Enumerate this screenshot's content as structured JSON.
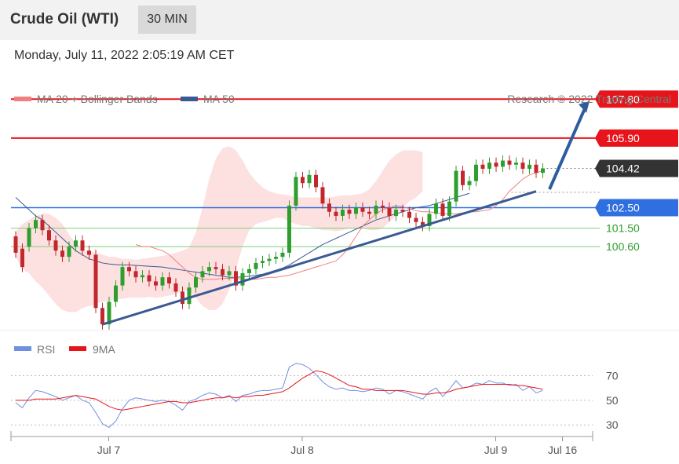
{
  "header": {
    "instrument": "Crude Oil (WTI)",
    "timeframe": "30 MIN",
    "datetime": "Monday, July 11, 2022 2:05:19 AM CET"
  },
  "legend": {
    "ma20": "MA 20 + Bollinger Bands",
    "ma50": "MA 50",
    "credit": "Research © 2022 Trading Central",
    "rsi": "RSI",
    "rsi_ma": "9MA"
  },
  "colors": {
    "resistance": "#e8141b",
    "support": "#2f6fe0",
    "pivot": "#2f6fe0",
    "minor_support": "#7ccf7c",
    "current": "#333333",
    "ma20": "#f08080",
    "ma50": "#3a5a94",
    "bollinger": "#fde0e0",
    "trendline": "#3a5a94",
    "candle_up": "#2e9e2e",
    "candle_down": "#c1272d",
    "rsi": "#6f8fe0",
    "rsi_ma": "#e8141b"
  },
  "chart_data": {
    "type": "candlestick",
    "price_axis": {
      "ylim": [
        96.5,
        109.0
      ]
    },
    "levels": [
      {
        "price": 107.8,
        "label": "107.80",
        "kind": "resistance",
        "tag_color": "#e8141b"
      },
      {
        "price": 105.9,
        "label": "105.90",
        "kind": "resistance",
        "tag_color": "#e8141b"
      },
      {
        "price": 104.42,
        "label": "104.42",
        "kind": "current",
        "tag_color": "#333333"
      },
      {
        "price": 102.5,
        "label": "102.50",
        "kind": "pivot",
        "tag_color": "#2f6fe0"
      },
      {
        "price": 101.5,
        "label": "101.50",
        "kind": "support",
        "tag_color": "#2e9e2e"
      },
      {
        "price": 100.6,
        "label": "100.60",
        "kind": "support",
        "tag_color": "#2e9e2e"
      }
    ],
    "x_ticks": [
      {
        "label": "Jul 7",
        "idx": 13
      },
      {
        "label": "Jul 8",
        "idx": 42
      },
      {
        "label": "Jul 9",
        "idx": 71
      },
      {
        "label": "Jul 16",
        "idx": 81
      }
    ],
    "candles": [
      [
        101.1,
        100.3
      ],
      [
        100.5,
        99.6
      ],
      [
        100.6,
        101.5
      ],
      [
        101.5,
        101.9
      ],
      [
        101.9,
        101.4
      ],
      [
        101.4,
        100.9
      ],
      [
        100.9,
        100.4
      ],
      [
        100.4,
        100.1
      ],
      [
        100.1,
        100.6
      ],
      [
        100.6,
        100.9
      ],
      [
        100.9,
        100.4
      ],
      [
        100.4,
        100.2
      ],
      [
        100.2,
        97.6
      ],
      [
        97.6,
        96.8
      ],
      [
        96.8,
        97.9
      ],
      [
        97.9,
        98.7
      ],
      [
        98.7,
        99.6
      ],
      [
        99.6,
        99.4
      ],
      [
        99.4,
        99.1
      ],
      [
        99.1,
        99.2
      ],
      [
        99.2,
        98.9
      ],
      [
        98.9,
        98.7
      ],
      [
        98.7,
        99.1
      ],
      [
        99.1,
        98.8
      ],
      [
        98.8,
        98.4
      ],
      [
        98.4,
        97.8
      ],
      [
        97.8,
        98.6
      ],
      [
        98.6,
        99.1
      ],
      [
        99.1,
        99.4
      ],
      [
        99.4,
        99.6
      ],
      [
        99.6,
        99.5
      ],
      [
        99.5,
        99.2
      ],
      [
        99.2,
        99.4
      ],
      [
        99.4,
        98.7
      ],
      [
        98.7,
        99.3
      ],
      [
        99.3,
        99.5
      ],
      [
        99.5,
        99.8
      ],
      [
        99.8,
        99.9
      ],
      [
        99.9,
        100.0
      ],
      [
        100.0,
        100.1
      ],
      [
        100.1,
        100.3
      ],
      [
        100.3,
        102.6
      ],
      [
        102.6,
        104.0
      ],
      [
        104.0,
        103.7
      ],
      [
        103.7,
        104.1
      ],
      [
        104.1,
        103.5
      ],
      [
        103.5,
        102.7
      ],
      [
        102.7,
        102.3
      ],
      [
        102.3,
        102.1
      ],
      [
        102.1,
        102.4
      ],
      [
        102.4,
        102.2
      ],
      [
        102.2,
        102.5
      ],
      [
        102.5,
        102.3
      ],
      [
        102.3,
        102.2
      ],
      [
        102.2,
        102.6
      ],
      [
        102.6,
        102.5
      ],
      [
        102.5,
        102.1
      ],
      [
        102.1,
        102.4
      ],
      [
        102.4,
        102.3
      ],
      [
        102.3,
        102.0
      ],
      [
        102.0,
        101.8
      ],
      [
        101.8,
        101.6
      ],
      [
        101.6,
        102.2
      ],
      [
        102.2,
        102.7
      ],
      [
        102.7,
        102.1
      ],
      [
        102.1,
        102.8
      ],
      [
        102.8,
        104.3
      ],
      [
        104.3,
        103.6
      ],
      [
        103.6,
        103.8
      ],
      [
        103.8,
        104.6
      ],
      [
        104.6,
        104.4
      ],
      [
        104.4,
        104.7
      ],
      [
        104.7,
        104.5
      ],
      [
        104.5,
        104.8
      ],
      [
        104.8,
        104.6
      ],
      [
        104.6,
        104.7
      ],
      [
        104.7,
        104.4
      ],
      [
        104.4,
        104.6
      ],
      [
        104.6,
        104.2
      ],
      [
        104.2,
        104.42
      ]
    ],
    "ma50": [
      103.0,
      102.7,
      102.4,
      102.1,
      101.9,
      101.6,
      101.3,
      101.0,
      100.7,
      100.4,
      100.2,
      100.0,
      99.9,
      99.8,
      99.75,
      99.72,
      99.7,
      99.7,
      99.68,
      99.66,
      99.64,
      99.62,
      99.6,
      99.55,
      99.5,
      99.45,
      99.4,
      99.35,
      99.3,
      99.25,
      99.2,
      99.15,
      99.1,
      99.1,
      99.12,
      99.15,
      99.2,
      99.25,
      99.35,
      99.45,
      99.55,
      99.7,
      99.9,
      100.1,
      100.3,
      100.5,
      100.7,
      100.85,
      101.0,
      101.15,
      101.3,
      101.45,
      101.6,
      101.75,
      101.9,
      102.0,
      102.1,
      102.2,
      102.3,
      102.4,
      102.5,
      102.55,
      102.6,
      102.7,
      102.8,
      102.9,
      103.0,
      103.1,
      103.2
    ],
    "ma20": [
      100.7,
      100.6,
      100.6,
      100.5,
      100.4,
      100.2,
      99.9,
      99.6,
      99.3,
      99.1,
      99.0,
      99.0,
      99.0,
      99.05,
      99.05,
      99.05,
      99.0,
      99.0,
      99.0,
      99.05,
      99.1,
      99.1,
      99.15,
      99.2,
      99.3,
      99.4,
      99.5,
      99.6,
      99.7,
      99.8,
      99.9,
      100.2,
      100.6,
      101.1,
      101.6,
      101.9,
      102.2,
      102.4,
      102.5,
      102.6,
      102.55,
      102.45,
      102.35,
      102.3,
      102.3,
      102.25,
      102.2,
      102.2,
      102.2,
      102.25,
      102.3,
      102.3,
      102.35,
      102.4,
      102.6,
      102.9,
      103.3,
      103.6,
      103.9,
      104.1,
      104.2,
      104.3
    ],
    "boll_upper": [
      101.3,
      101.7,
      101.9,
      102.1,
      102.2,
      102.2,
      102.0,
      101.7,
      101.2,
      100.7,
      100.4,
      100.4,
      100.3,
      100.2,
      100.1,
      100.1,
      100.0,
      100.0,
      99.95,
      100.0,
      100.05,
      100.1,
      100.15,
      100.2,
      100.3,
      100.4,
      100.55,
      101.3,
      102.5,
      103.9,
      104.9,
      105.4,
      105.5,
      105.3,
      104.8,
      104.2,
      103.8,
      103.5,
      103.3,
      103.2,
      103.15,
      103.1,
      103.0,
      103.0,
      103.0,
      103.0,
      103.0,
      103.0,
      103.05,
      103.1,
      103.1,
      103.15,
      103.2,
      103.4,
      103.8,
      104.3,
      104.8,
      105.1,
      105.3,
      105.3,
      105.3,
      105.2
    ],
    "boll_lower": [
      100.1,
      99.5,
      99.3,
      98.9,
      98.6,
      98.2,
      97.8,
      97.5,
      97.4,
      97.4,
      97.6,
      97.7,
      97.8,
      97.9,
      97.95,
      98.0,
      98.05,
      98.1,
      98.1,
      98.1,
      98.15,
      98.1,
      98.15,
      98.2,
      98.3,
      98.4,
      98.45,
      98.1,
      97.7,
      97.5,
      97.5,
      97.8,
      98.5,
      99.5,
      100.6,
      101.4,
      101.7,
      101.8,
      101.9,
      102.0,
      102.0,
      101.8,
      101.7,
      101.6,
      101.6,
      101.5,
      101.4,
      101.4,
      101.35,
      101.4,
      101.5,
      101.45,
      101.5,
      101.4,
      101.4,
      101.5,
      101.8,
      102.1,
      102.5,
      102.8,
      103.0,
      103.3
    ],
    "trendline": {
      "from": {
        "idx": 13,
        "price": 96.8
      },
      "to": {
        "idx": 78,
        "price": 103.3
      }
    },
    "forecast_arrow": {
      "from": {
        "idx": 80,
        "price": 103.4
      },
      "to": {
        "idx": 86,
        "price": 107.7
      }
    },
    "rsi": {
      "ylim": [
        18,
        85
      ],
      "ticks": [
        70,
        50,
        30
      ],
      "values": [
        48,
        44,
        52,
        58,
        57,
        55,
        53,
        50,
        52,
        54,
        50,
        48,
        40,
        31,
        28,
        33,
        43,
        50,
        52,
        51,
        50,
        49,
        50,
        49,
        46,
        42,
        49,
        51,
        54,
        56,
        55,
        52,
        54,
        49,
        54,
        55,
        57,
        58,
        58,
        59,
        60,
        77,
        80,
        79,
        76,
        71,
        65,
        61,
        59,
        60,
        58,
        58,
        57,
        58,
        60,
        59,
        55,
        58,
        57,
        55,
        53,
        51,
        57,
        60,
        53,
        59,
        66,
        60,
        61,
        64,
        63,
        66,
        64,
        64,
        62,
        63,
        58,
        61,
        56,
        58
      ],
      "ma9": [
        50,
        50,
        50,
        51,
        51,
        51,
        51,
        52,
        53,
        54,
        53,
        52,
        51,
        48,
        45,
        43,
        42,
        43,
        44,
        45,
        46,
        47,
        48,
        49,
        49,
        48,
        48,
        49,
        50,
        51,
        52,
        52,
        53,
        52,
        53,
        53,
        54,
        54,
        55,
        56,
        57,
        60,
        64,
        68,
        71,
        74,
        73,
        71,
        68,
        65,
        62,
        61,
        59,
        59,
        58,
        58,
        58,
        58,
        58,
        57,
        56,
        55,
        55,
        56,
        56,
        57,
        59,
        60,
        61,
        62,
        63,
        63,
        63,
        63,
        63,
        62,
        62,
        61,
        60,
        59
      ]
    }
  }
}
